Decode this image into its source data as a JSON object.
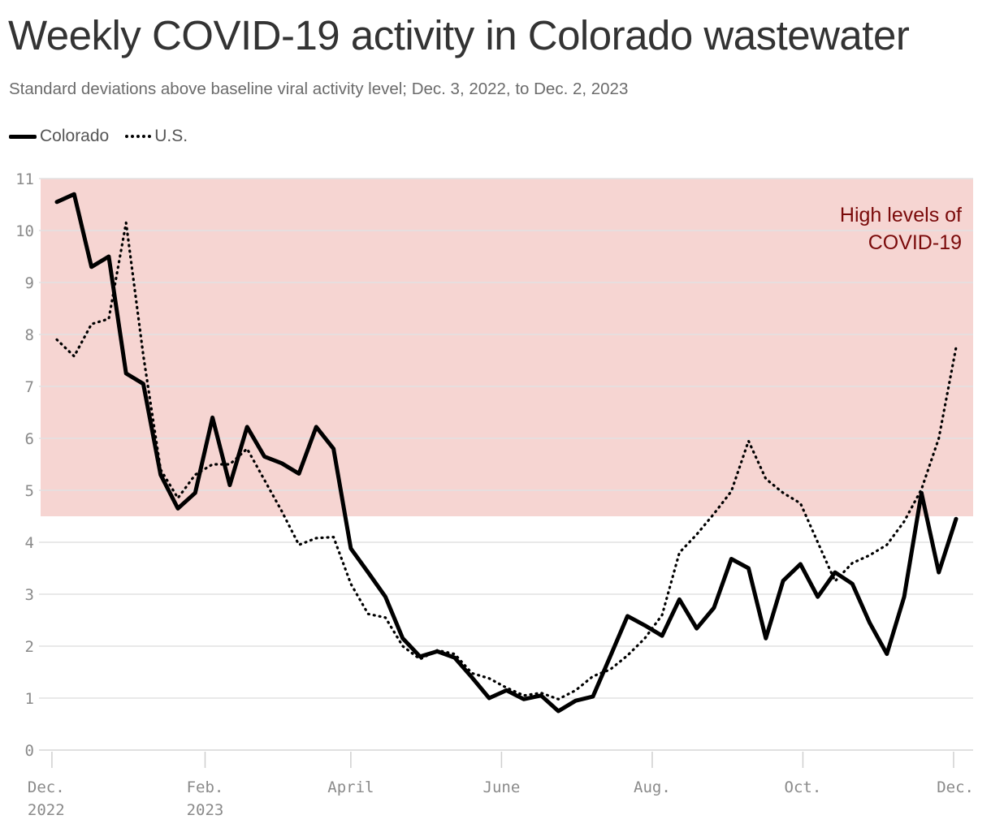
{
  "title": "Weekly COVID-19 activity in Colorado wastewater",
  "subtitle": "Standard deviations above baseline viral activity level; Dec. 3, 2022, to Dec. 2, 2023",
  "legend": [
    {
      "name": "Colorado",
      "style": "solid"
    },
    {
      "name": "U.S.",
      "style": "dotted"
    }
  ],
  "chart_data": {
    "type": "line",
    "title": "Weekly COVID-19 activity in Colorado wastewater",
    "subtitle": "Standard deviations above baseline viral activity level; Dec. 3, 2022, to Dec. 2, 2023",
    "xlabel": "",
    "ylabel": "",
    "ylim": [
      0,
      11
    ],
    "yticks": [
      0,
      1,
      2,
      3,
      4,
      5,
      6,
      7,
      8,
      9,
      10,
      11
    ],
    "x_start": "2022-12-03",
    "x_end": "2023-12-02",
    "xticks": [
      {
        "date": "2022-12-01",
        "label1": "Dec.",
        "label2": "2022"
      },
      {
        "date": "2023-02-01",
        "label1": "Feb.",
        "label2": "2023"
      },
      {
        "date": "2023-04-01",
        "label1": "April",
        "label2": ""
      },
      {
        "date": "2023-06-01",
        "label1": "June",
        "label2": ""
      },
      {
        "date": "2023-08-01",
        "label1": "Aug.",
        "label2": ""
      },
      {
        "date": "2023-10-01",
        "label1": "Oct.",
        "label2": ""
      },
      {
        "date": "2023-12-01",
        "label1": "Dec.",
        "label2": ""
      }
    ],
    "grid": true,
    "threshold_band": {
      "from": 4.5,
      "to": 11,
      "label_lines": [
        "High levels of",
        "COVID-19"
      ],
      "color": "#f6d5d2"
    },
    "series": [
      {
        "name": "Colorado",
        "style": "solid",
        "color": "#000000",
        "values": [
          10.55,
          10.7,
          9.3,
          9.5,
          7.25,
          7.05,
          5.3,
          4.65,
          4.95,
          6.4,
          5.1,
          6.22,
          5.65,
          5.52,
          5.32,
          6.22,
          5.8,
          3.88,
          3.42,
          2.95,
          2.15,
          1.8,
          1.9,
          1.78,
          1.4,
          1.0,
          1.15,
          0.98,
          1.05,
          0.75,
          0.95,
          1.03,
          1.8,
          2.58,
          2.4,
          2.2,
          2.9,
          2.34,
          2.74,
          3.68,
          3.5,
          2.15,
          3.26,
          3.58,
          2.95,
          3.42,
          3.2,
          2.45,
          1.85,
          2.95,
          4.95,
          3.42,
          4.45
        ]
      },
      {
        "name": "U.S.",
        "style": "dotted",
        "color": "#000000",
        "values": [
          7.9,
          7.58,
          8.2,
          8.3,
          10.15,
          7.6,
          5.4,
          4.85,
          5.3,
          5.5,
          5.5,
          5.8,
          5.2,
          4.6,
          3.95,
          4.08,
          4.1,
          3.2,
          2.62,
          2.55,
          2.0,
          1.75,
          1.92,
          1.85,
          1.48,
          1.38,
          1.2,
          1.05,
          1.1,
          0.98,
          1.15,
          1.42,
          1.55,
          1.82,
          2.15,
          2.6,
          3.8,
          4.15,
          4.55,
          4.98,
          5.95,
          5.22,
          4.95,
          4.75,
          4.0,
          3.25,
          3.6,
          3.75,
          3.95,
          4.4,
          5.02,
          6.0,
          7.75
        ]
      }
    ]
  }
}
